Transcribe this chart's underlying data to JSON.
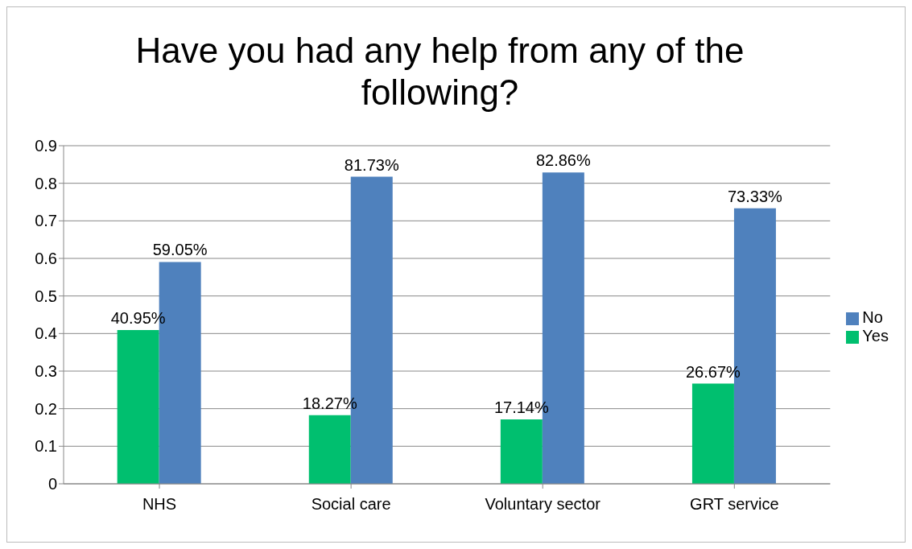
{
  "chart_data": {
    "type": "bar",
    "title": "Have you had any help from any of the following?",
    "categories": [
      "NHS",
      "Social care",
      "Voluntary sector",
      "GRT service"
    ],
    "series": [
      {
        "name": "Yes",
        "color": "#00bf6f",
        "values": [
          0.4095,
          0.1827,
          0.1714,
          0.2667
        ],
        "value_labels": [
          "40.95%",
          "18.27%",
          "17.14%",
          "26.67%"
        ]
      },
      {
        "name": "No",
        "color": "#4f81bd",
        "values": [
          0.5905,
          0.8173,
          0.8286,
          0.7333
        ],
        "value_labels": [
          "59.05%",
          "81.73%",
          "82.86%",
          "73.33%"
        ]
      }
    ],
    "ylim": [
      0,
      0.9
    ],
    "yticks": [
      0,
      0.1,
      0.2,
      0.3,
      0.4,
      0.5,
      0.6,
      0.7,
      0.8,
      0.9
    ],
    "grid": "y",
    "legend": "right"
  }
}
